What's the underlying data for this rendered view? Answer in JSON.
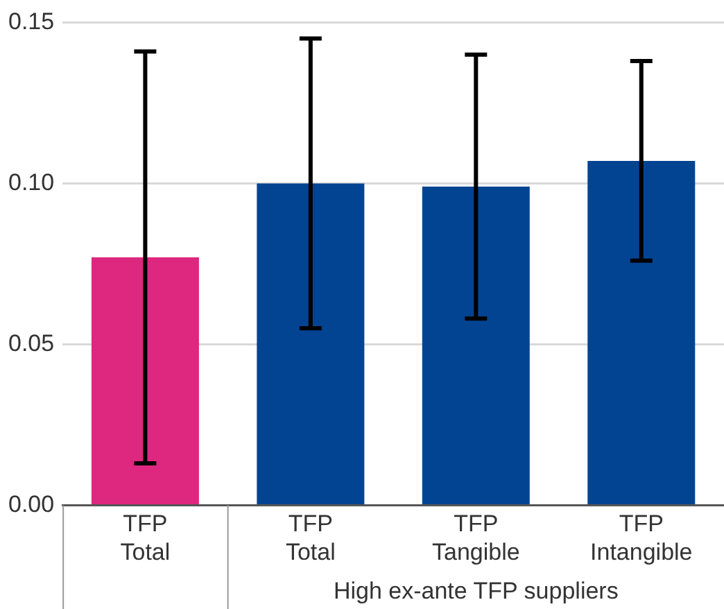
{
  "chart_data": {
    "type": "bar",
    "categories": [
      "TFP\nTotal",
      "TFP\nTotal",
      "TFP\nTangible",
      "TFP\nIntangible"
    ],
    "values": [
      0.077,
      0.1,
      0.099,
      0.107
    ],
    "colors": [
      "#de277e",
      "#034492",
      "#034492",
      "#034492"
    ],
    "errors": [
      [
        0.013,
        0.141
      ],
      [
        0.055,
        0.145
      ],
      [
        0.058,
        0.14
      ],
      [
        0.076,
        0.138
      ]
    ],
    "ylim": [
      0,
      0.15
    ],
    "yticks": [
      {
        "value": 0,
        "label": "0.00"
      },
      {
        "value": 0.05,
        "label": "0.05"
      },
      {
        "value": 0.1,
        "label": "0.10"
      },
      {
        "value": 0.15,
        "label": "0.15"
      }
    ],
    "grid": "y",
    "annotations": [
      "High ex-ante TFP suppliers"
    ]
  }
}
